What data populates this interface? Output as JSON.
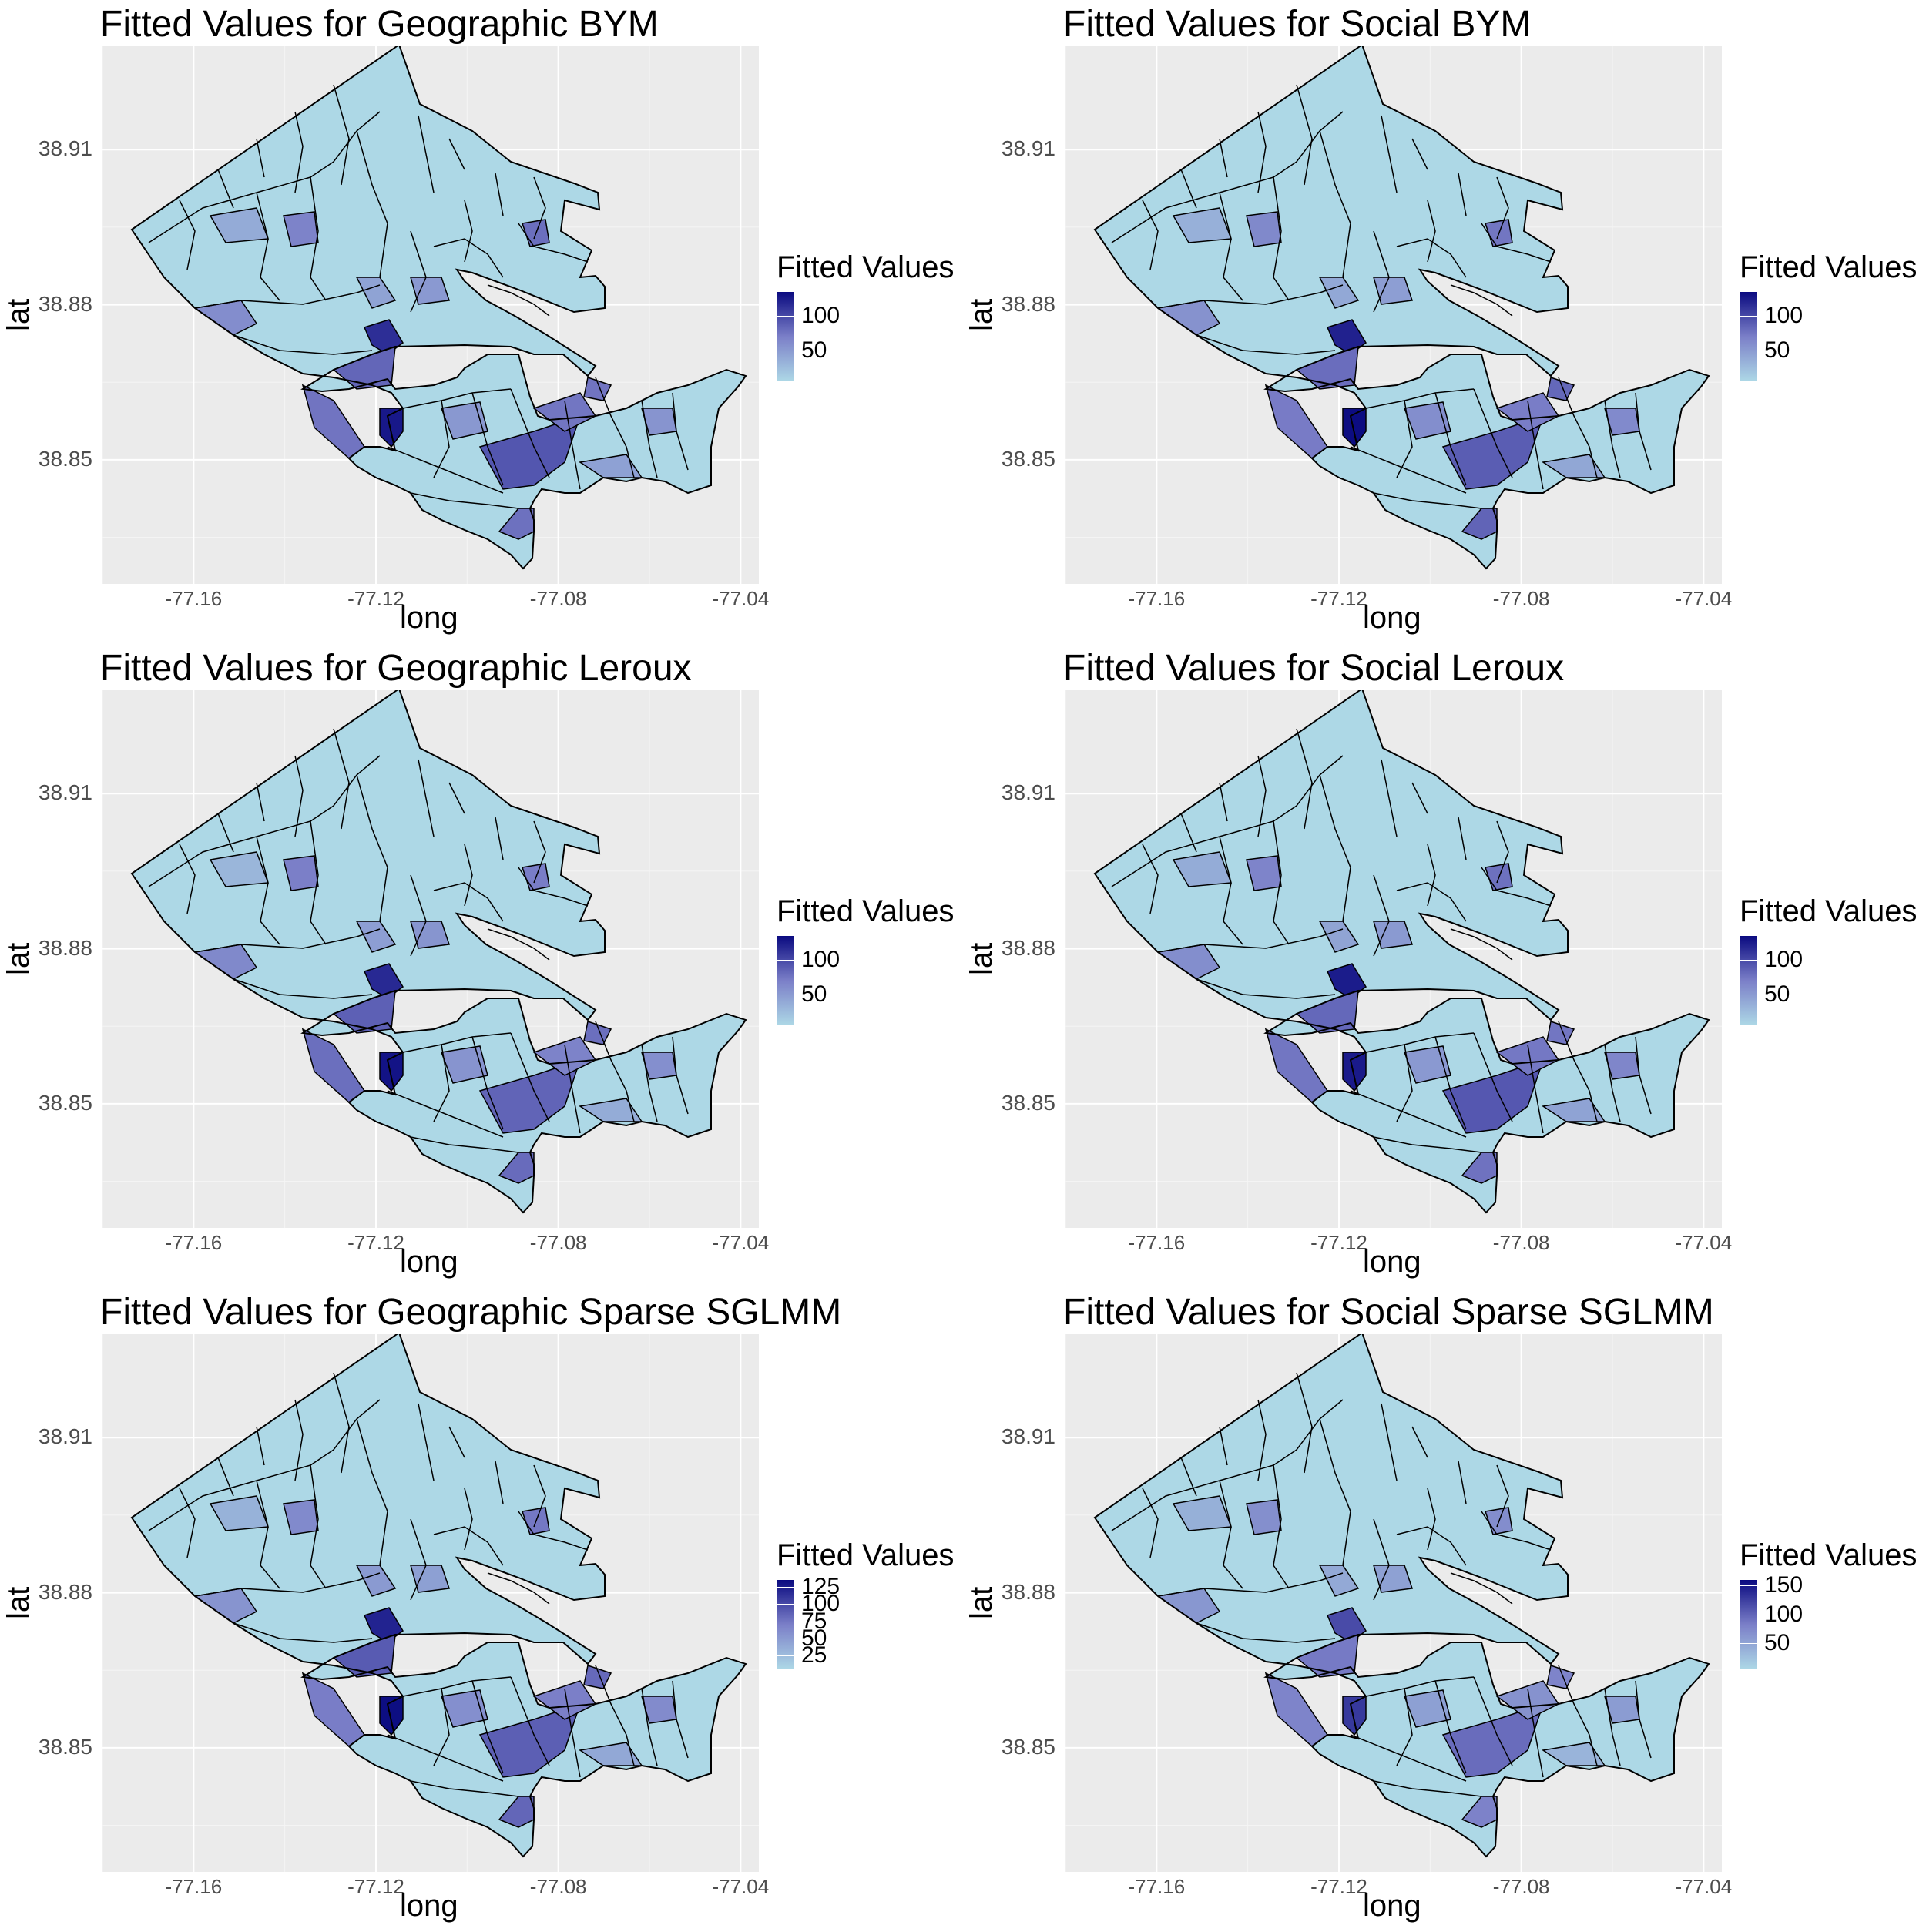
{
  "panels": [
    {
      "title": "Fitted Values for Geographic BYM",
      "legend_title": "Fitted Values",
      "legend_labels": [
        "100",
        "50"
      ],
      "legend_values": [
        100,
        50
      ],
      "legend_max": 135,
      "legend_min": 5
    },
    {
      "title": "Fitted Values for Social BYM",
      "legend_title": "Fitted Values",
      "legend_labels": [
        "100",
        "50"
      ],
      "legend_values": [
        100,
        50
      ],
      "legend_max": 135,
      "legend_min": 5
    },
    {
      "title": "Fitted Values for Geographic Leroux",
      "legend_title": "Fitted Values",
      "legend_labels": [
        "100",
        "50"
      ],
      "legend_values": [
        100,
        50
      ],
      "legend_max": 135,
      "legend_min": 5
    },
    {
      "title": "Fitted Values for Social Leroux",
      "legend_title": "Fitted Values",
      "legend_labels": [
        "100",
        "50"
      ],
      "legend_values": [
        100,
        50
      ],
      "legend_max": 135,
      "legend_min": 5
    },
    {
      "title": "Fitted Values for Geographic Sparse SGLMM",
      "legend_title": "Fitted Values",
      "legend_labels": [
        "125",
        "100",
        "75",
        "50",
        "25"
      ],
      "legend_values": [
        125,
        100,
        75,
        50,
        25
      ],
      "legend_max": 135,
      "legend_min": 5
    },
    {
      "title": "Fitted Values for Social  Sparse SGLMM",
      "legend_title": "Fitted Values",
      "legend_labels": [
        "150",
        "100",
        "50"
      ],
      "legend_values": [
        150,
        100,
        50
      ],
      "legend_max": 160,
      "legend_min": 5
    }
  ],
  "axes": {
    "xlabel": "long",
    "ylabel": "lat",
    "x_ticks": [
      "-77.16",
      "-77.12",
      "-77.08",
      "-77.04"
    ],
    "y_ticks": [
      "38.91",
      "38.88",
      "38.85"
    ]
  },
  "colors": {
    "low": "#add8e6",
    "high": "#0a0a80",
    "panel_bg": "#ebebeb",
    "grid": "#ffffff",
    "border": "#000000"
  },
  "chart_data": {
    "type": "choropleth",
    "x_ticks": [
      -77.16,
      -77.12,
      -77.08,
      -77.04
    ],
    "y_ticks": [
      38.91,
      38.88,
      38.85
    ],
    "xlim": [
      -77.18,
      -77.036
    ],
    "ylim": [
      38.826,
      38.93
    ],
    "xlabel": "long",
    "ylabel": "lat",
    "legend_title": "Fitted Values",
    "color_low": "#add8e6",
    "color_high": "#0a0a80"
  }
}
